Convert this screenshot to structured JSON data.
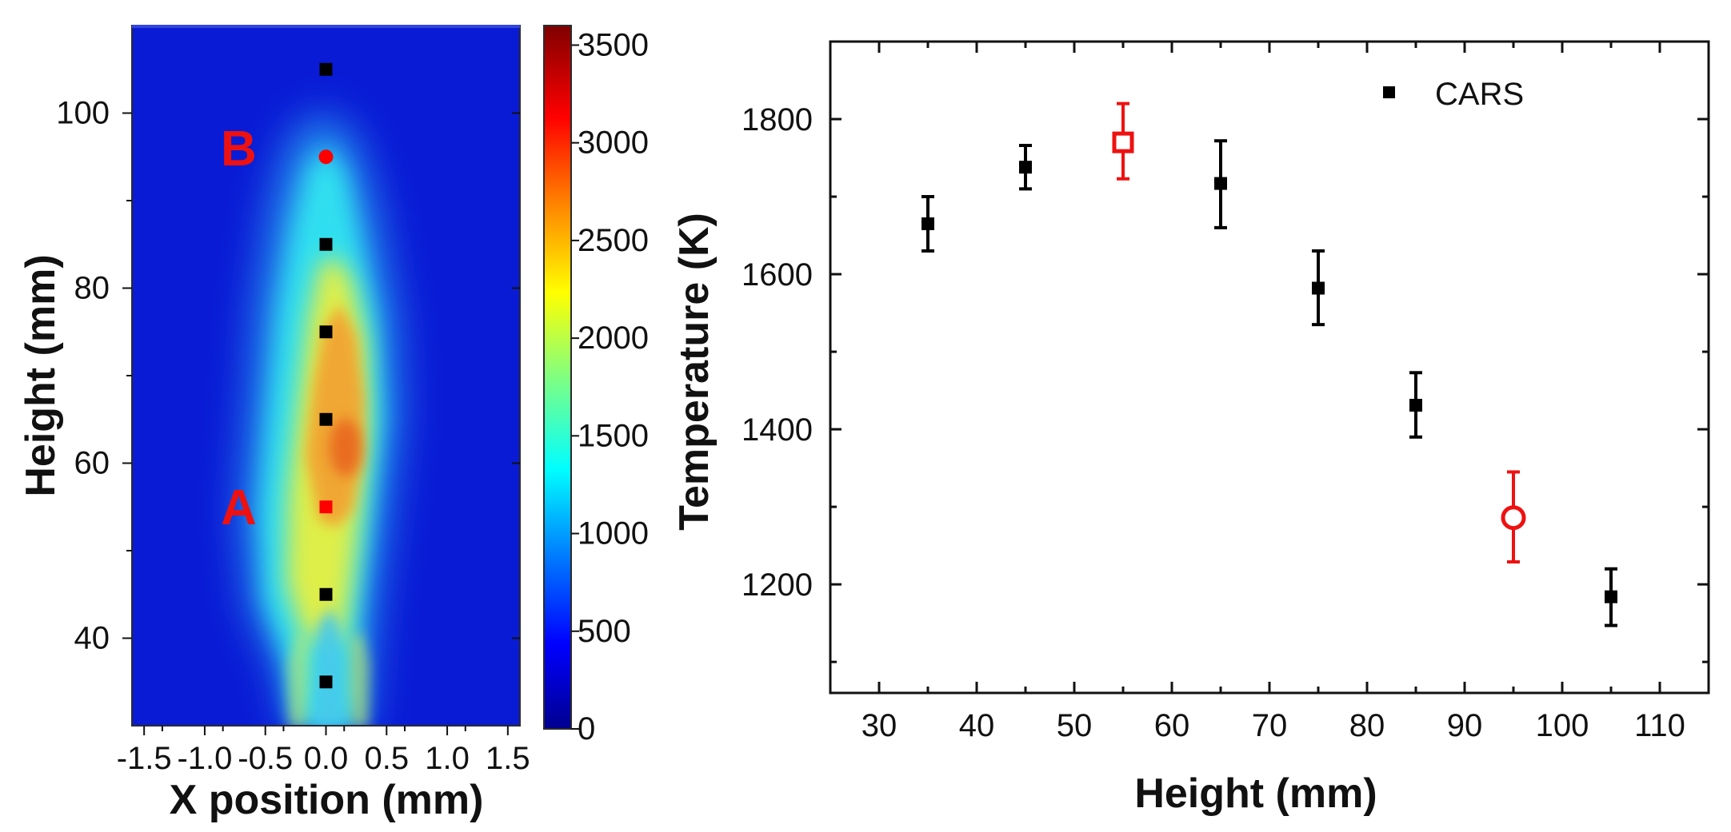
{
  "chart_data": [
    {
      "type": "heatmap",
      "title": "",
      "xlabel": "X position (mm)",
      "ylabel": "Height (mm)",
      "xlim": [
        -1.6,
        1.6
      ],
      "ylim": [
        30,
        110
      ],
      "x_ticks": [
        -1.5,
        -1.0,
        -0.5,
        0.0,
        0.5,
        1.0,
        1.5
      ],
      "x_tick_labels": [
        "-1.5",
        "-1.0",
        "-0.5",
        "0.0",
        "0.5",
        "1.0",
        "1.5"
      ],
      "y_ticks": [
        40,
        60,
        80,
        100
      ],
      "y_tick_labels": [
        "40",
        "60",
        "80",
        "100"
      ],
      "colorbar": {
        "range": [
          0,
          3600
        ],
        "ticks": [
          0,
          500,
          1000,
          1500,
          2000,
          2500,
          3000,
          3500
        ],
        "tick_labels": [
          "0",
          "500",
          "1000",
          "1500",
          "2000",
          "2500",
          "3000",
          "3500"
        ],
        "colors": [
          "#00008f",
          "#0000ff",
          "#0080ff",
          "#00ffff",
          "#80ff80",
          "#ffff00",
          "#ff8000",
          "#ff0000",
          "#800000"
        ]
      },
      "measurement_points": [
        {
          "x": 0,
          "y": 35,
          "marker": "square",
          "color": "#000000"
        },
        {
          "x": 0,
          "y": 45,
          "marker": "square",
          "color": "#000000"
        },
        {
          "x": 0,
          "y": 55,
          "marker": "square",
          "color": "#ff0000"
        },
        {
          "x": 0,
          "y": 65,
          "marker": "square",
          "color": "#000000"
        },
        {
          "x": 0,
          "y": 75,
          "marker": "square",
          "color": "#000000"
        },
        {
          "x": 0,
          "y": 85,
          "marker": "square",
          "color": "#000000"
        },
        {
          "x": 0,
          "y": 95,
          "marker": "circle",
          "color": "#ff0000"
        },
        {
          "x": 0,
          "y": 105,
          "marker": "square",
          "color": "#000000"
        }
      ],
      "annotations": [
        {
          "text": "A",
          "x": -0.72,
          "y": 53,
          "color": "#ee1111"
        },
        {
          "text": "B",
          "x": -0.72,
          "y": 94,
          "color": "#ee1111"
        }
      ]
    },
    {
      "type": "scatter",
      "title": "",
      "xlabel": "Height (mm)",
      "ylabel": "Temperature (K)",
      "xlim": [
        25,
        115
      ],
      "ylim": [
        1060,
        1900
      ],
      "x_ticks": [
        30,
        40,
        50,
        60,
        70,
        80,
        90,
        100,
        110
      ],
      "x_tick_labels": [
        "30",
        "40",
        "50",
        "60",
        "70",
        "80",
        "90",
        "100",
        "110"
      ],
      "y_ticks": [
        1200,
        1400,
        1600,
        1800
      ],
      "y_tick_labels": [
        "1200",
        "1400",
        "1600",
        "1800"
      ],
      "legend": {
        "position": "top-right",
        "entries": [
          {
            "name": "CARS",
            "marker": "square",
            "color": "#000000"
          }
        ]
      },
      "series": [
        {
          "name": "CARS",
          "color": "#000000",
          "marker": "square",
          "x": [
            35,
            45,
            65,
            75,
            85,
            105
          ],
          "y": [
            1665,
            1738,
            1717,
            1582,
            1431,
            1184
          ],
          "err_low": [
            1630,
            1710,
            1660,
            1535,
            1390,
            1147
          ],
          "err_high": [
            1700,
            1766,
            1772,
            1630,
            1473,
            1220
          ]
        },
        {
          "color": "#ee1111",
          "marker": "open-square",
          "x": [
            55
          ],
          "y": [
            1770
          ],
          "err_low": [
            1723
          ],
          "err_high": [
            1820
          ]
        },
        {
          "color": "#ee1111",
          "marker": "open-circle",
          "x": [
            95
          ],
          "y": [
            1286
          ],
          "err_low": [
            1229
          ],
          "err_high": [
            1345
          ]
        }
      ]
    }
  ]
}
